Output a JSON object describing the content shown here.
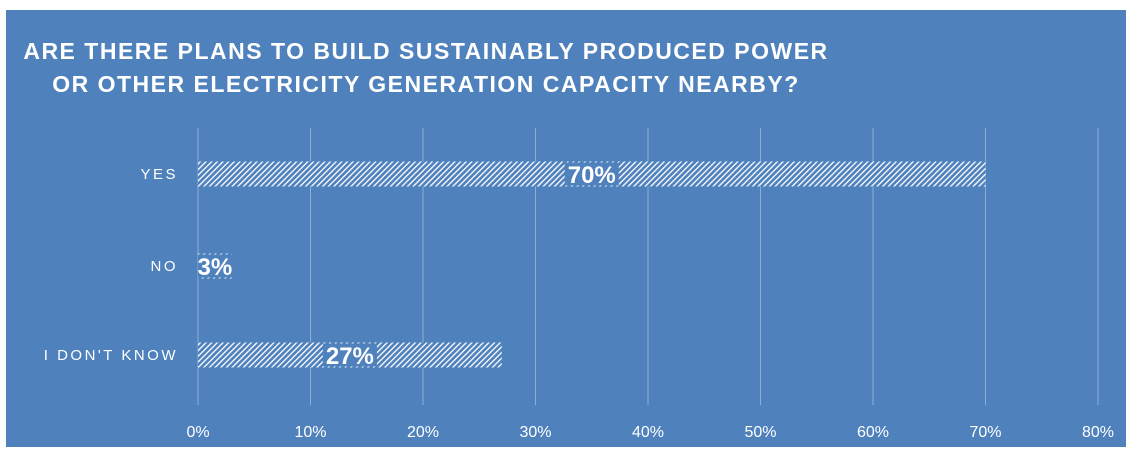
{
  "chart_data": {
    "type": "bar",
    "orientation": "horizontal",
    "title": "ARE THERE PLANS TO BUILD SUSTAINABLY PRODUCED POWER OR OTHER ELECTRICITY GENERATION CAPACITY NEARBY?",
    "title_lines": [
      "ARE THERE PLANS TO BUILD SUSTAINABLY PRODUCED POWER",
      "OR OTHER ELECTRICITY GENERATION CAPACITY NEARBY?"
    ],
    "categories": [
      "YES",
      "NO",
      "I DON'T KNOW"
    ],
    "values": [
      70,
      3,
      27
    ],
    "data_labels": [
      "70%",
      "3%",
      "27%"
    ],
    "x_ticks": [
      "0%",
      "10%",
      "20%",
      "30%",
      "40%",
      "50%",
      "60%",
      "70%",
      "80%"
    ],
    "xlim": [
      0,
      80
    ],
    "grid": true,
    "bar_fill": "hatched white",
    "background_color": "#4F81BD",
    "text_color": "#FFFFFF"
  }
}
